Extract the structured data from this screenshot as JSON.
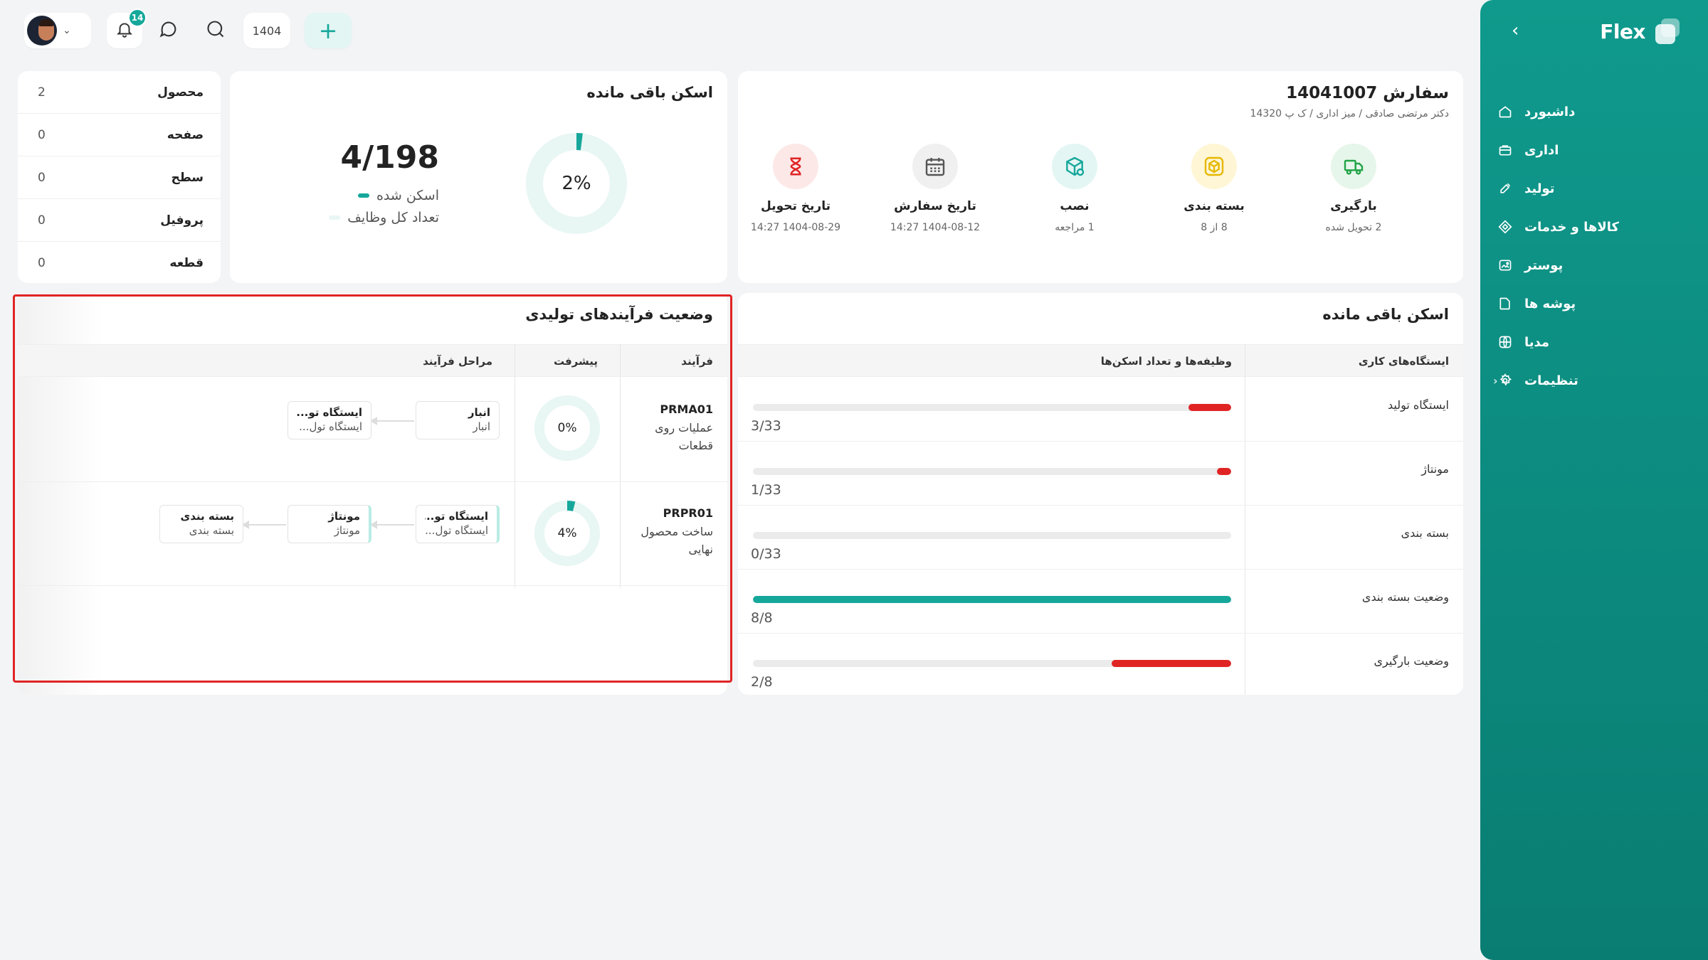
{
  "sidebar": {
    "logo": "Flex",
    "collapse_icon": "chevron-left-icon",
    "items": [
      {
        "label": "داشبورد",
        "icon": "home-icon"
      },
      {
        "label": "اداری",
        "icon": "briefcase-icon"
      },
      {
        "label": "تولید",
        "icon": "tools-icon"
      },
      {
        "label": "کالاها و خدمات",
        "icon": "diamond-icon"
      },
      {
        "label": "پوستر",
        "icon": "image-icon"
      },
      {
        "label": "پوشه ها",
        "icon": "folder-icon"
      },
      {
        "label": "مدیا",
        "icon": "globe-icon"
      },
      {
        "label": "تنظیمات",
        "icon": "gear-icon",
        "has_children": true
      }
    ]
  },
  "topbar": {
    "year": "1404",
    "notifications_count": "14"
  },
  "order": {
    "title": "سفارش 14041007",
    "subtitle": "دکتر مرتضی صادقی / میز اداری / ک پ 14320",
    "steps": [
      {
        "label": "بارگیری",
        "value": "2 تحویل شده",
        "icon": "truck-icon",
        "color": "#22a447",
        "bg": "#e6f6ea"
      },
      {
        "label": "بسته بندی",
        "value": "8 از 8",
        "icon": "box-icon",
        "color": "#e6b800",
        "bg": "#fff6d6"
      },
      {
        "label": "نصب",
        "value": "1 مراجعه",
        "icon": "install-box-icon",
        "color": "#16a79b",
        "bg": "#e3f6f4"
      },
      {
        "label": "تاریخ سفارش",
        "value": "1404-08-12 14:27",
        "icon": "calendar-icon",
        "color": "#555555",
        "bg": "#f0f0f0"
      },
      {
        "label": "تاریخ تحویل",
        "value": "1404-08-29 14:27",
        "icon": "hourglass-icon",
        "color": "#e02424",
        "bg": "#fde8e8"
      }
    ]
  },
  "scan_summary": {
    "title": "اسکن باقی مانده",
    "percent_label": "2%",
    "percent": 2,
    "count": "4/198",
    "legend_scanned": "اسکن شده",
    "legend_total": "تعداد کل وظایف",
    "accent": "#16a79b"
  },
  "categories": [
    {
      "label": "محصول",
      "value": "2"
    },
    {
      "label": "صفحه",
      "value": "0"
    },
    {
      "label": "سطح",
      "value": "0"
    },
    {
      "label": "پروفیل",
      "value": "0"
    },
    {
      "label": "قطعه",
      "value": "0"
    }
  ],
  "stations": {
    "title": "اسکن باقی مانده",
    "col_station": "ایستگاه‌های کاری",
    "col_tasks": "وظیفه‌ها و تعداد اسکن‌ها",
    "rows": [
      {
        "name": "ایستگاه تولید",
        "text": "3/33",
        "fraction": 0.09,
        "color": "#e02424"
      },
      {
        "name": "مونتاژ",
        "text": "1/33",
        "fraction": 0.03,
        "color": "#e02424"
      },
      {
        "name": "بسته بندی",
        "text": "0/33",
        "fraction": 0,
        "color": "#e02424"
      },
      {
        "name": "وضعیت بسته بندی",
        "text": "8/8",
        "fraction": 1,
        "color": "#16a79b"
      },
      {
        "name": "وضعیت بارگیری",
        "text": "2/8",
        "fraction": 0.25,
        "color": "#e02424"
      }
    ]
  },
  "processes": {
    "title": "وضعیت فرآیندهای تولیدی",
    "col_process": "فرآیند",
    "col_progress": "پیشرفت",
    "col_stages": "مراحل فرآیند",
    "rows": [
      {
        "code": "PRMA01",
        "name": "عملیات روی قطعات",
        "progress_label": "0%",
        "progress": 0,
        "stages": [
          {
            "title": "انبار",
            "sub": "انبار",
            "active": false
          },
          {
            "title": "ایستگاه تو...",
            "sub": "ایستگاه تول...",
            "active": false
          }
        ]
      },
      {
        "code": "PRPR01",
        "name": "ساخت محصول نهایی",
        "progress_label": "4%",
        "progress": 4,
        "stages": [
          {
            "title": "ایستگاه تو...",
            "sub": "ایستگاه تول...",
            "active": true
          },
          {
            "title": "مونتاژ",
            "sub": "مونتاژ",
            "active": true
          },
          {
            "title": "بسته بندی",
            "sub": "بسته بندی",
            "active": false
          }
        ]
      }
    ]
  }
}
